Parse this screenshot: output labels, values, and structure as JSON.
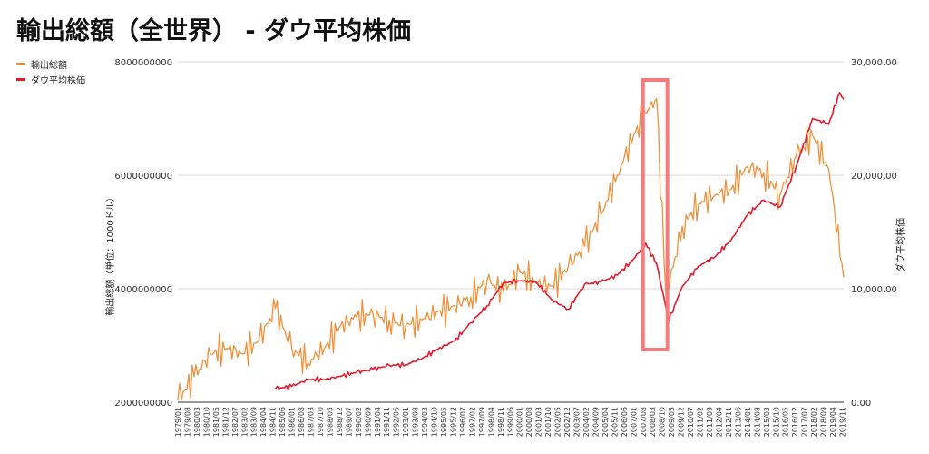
{
  "chart_data": {
    "type": "line",
    "title": "輸出総額（全世界） - ダウ平均株価",
    "series": [
      {
        "name": "輸出総額",
        "axis": "left",
        "color": "#f0923b",
        "x": [
          "1979/01",
          "1980/01",
          "1981/01",
          "1982/01",
          "1983/01",
          "1984/01",
          "1985/01",
          "1986/01",
          "1987/01",
          "1988/01",
          "1989/01",
          "1990/01",
          "1991/01",
          "1992/01",
          "1993/01",
          "1994/01",
          "1995/01",
          "1996/01",
          "1997/01",
          "1998/01",
          "1999/01",
          "2000/01",
          "2001/01",
          "2002/01",
          "2003/01",
          "2004/01",
          "2005/01",
          "2006/01",
          "2007/01",
          "2008/01",
          "2008/06",
          "2009/01",
          "2010/01",
          "2011/01",
          "2012/01",
          "2013/01",
          "2014/01",
          "2015/01",
          "2016/01",
          "2017/01",
          "2018/01",
          "2019/01",
          "2019/12"
        ],
        "values": [
          2050000000,
          2450000000,
          2850000000,
          2950000000,
          2850000000,
          3100000000,
          3650000000,
          2950000000,
          2700000000,
          2950000000,
          3350000000,
          3500000000,
          3550000000,
          3450000000,
          3350000000,
          3450000000,
          3600000000,
          3700000000,
          3850000000,
          4150000000,
          3950000000,
          4300000000,
          4100000000,
          4050000000,
          4400000000,
          4750000000,
          5300000000,
          6000000000,
          6700000000,
          7200000000,
          7350000000,
          3850000000,
          5100000000,
          5500000000,
          5650000000,
          5750000000,
          6150000000,
          6050000000,
          5650000000,
          6350000000,
          6700000000,
          6100000000,
          4200000000
        ]
      },
      {
        "name": "ダウ平均株価",
        "axis": "right",
        "color": "#e8192c",
        "x": [
          "1985/01",
          "1986/01",
          "1987/01",
          "1988/01",
          "1989/01",
          "1990/01",
          "1991/01",
          "1992/01",
          "1993/01",
          "1994/01",
          "1995/01",
          "1996/01",
          "1997/01",
          "1998/01",
          "1999/01",
          "2000/01",
          "2001/01",
          "2002/01",
          "2003/01",
          "2004/01",
          "2005/01",
          "2006/01",
          "2007/01",
          "2007/10",
          "2008/06",
          "2009/03",
          "2010/01",
          "2011/01",
          "2012/01",
          "2013/01",
          "2014/01",
          "2015/01",
          "2016/01",
          "2017/01",
          "2018/01",
          "2019/01",
          "2019/09",
          "2019/12"
        ],
        "values": [
          1200,
          1400,
          2000,
          2000,
          2300,
          2650,
          2900,
          3250,
          3300,
          3850,
          4700,
          5400,
          7000,
          8500,
          10500,
          10700,
          10600,
          9000,
          8200,
          10400,
          10600,
          11200,
          12600,
          14000,
          12200,
          7200,
          10200,
          12000,
          12800,
          14300,
          16500,
          17800,
          17200,
          20800,
          25000,
          24500,
          27300,
          26700
        ]
      }
    ],
    "left_axis": {
      "min": 2000000000,
      "max": 8000000000,
      "ticks": [
        "2000000000",
        "4000000000",
        "6000000000",
        "8000000000"
      ],
      "label": "輸出総額（単位：1000ドル）"
    },
    "right_axis": {
      "min": 0,
      "max": 30000,
      "ticks": [
        "0.00",
        "10,000.00",
        "20,000.00",
        "30,000.00"
      ],
      "label": "ダウ平均株価"
    },
    "x_ticks": [
      "1979/01",
      "1979/08",
      "1980/03",
      "1980/10",
      "1981/05",
      "1981/12",
      "1982/07",
      "1983/02",
      "1983/09",
      "1984/04",
      "1984/11",
      "1985/06",
      "1986/01",
      "1986/08",
      "1987/03",
      "1987/10",
      "1988/05",
      "1988/12",
      "1989/07",
      "1990/02",
      "1990/09",
      "1991/04",
      "1991/11",
      "1992/06",
      "1993/01",
      "1993/08",
      "1994/03",
      "1994/10",
      "1995/05",
      "1995/12",
      "1996/07",
      "1997/02",
      "1997/09",
      "1998/04",
      "1998/11",
      "1999/06",
      "2000/01",
      "2000/08",
      "2001/03",
      "2001/10",
      "2002/05",
      "2002/12",
      "2003/07",
      "2004/02",
      "2004/09",
      "2005/04",
      "2005/11",
      "2006/06",
      "2007/01",
      "2007/08",
      "2008/03",
      "2008/10",
      "2009/05",
      "2009/12",
      "2010/07",
      "2011/02",
      "2011/09",
      "2012/04",
      "2012/11",
      "2013/06",
      "2014/01",
      "2014/08",
      "2015/03",
      "2015/10",
      "2016/05",
      "2016/12",
      "2017/07",
      "2018/02",
      "2018/09",
      "2019/04",
      "2019/11"
    ],
    "highlight": {
      "from": "2007/08",
      "to": "2009/02",
      "color": "#f87a7a"
    },
    "grid": true,
    "legend_position": "top-left"
  }
}
